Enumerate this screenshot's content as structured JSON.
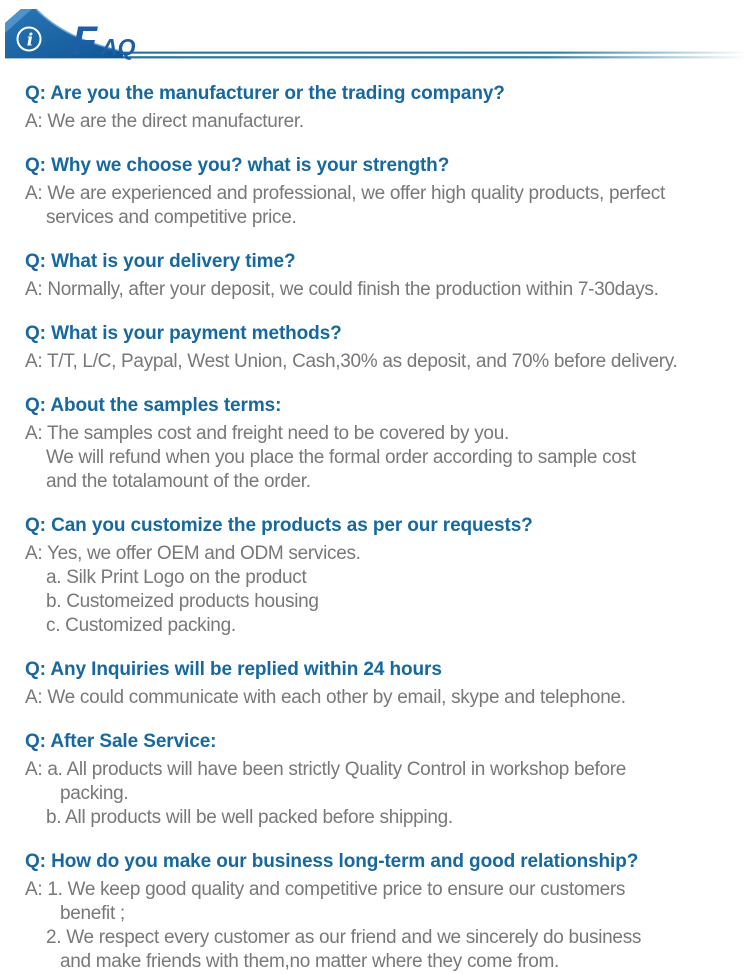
{
  "header": {
    "info_glyph": "i",
    "title_large": "F",
    "title_small": "AQ",
    "colors": {
      "ribbon_blue_top": "#2a76b6",
      "ribbon_blue_bottom": "#0f5694",
      "ribbon_accent": "#4e92c9",
      "rule_blue": "#296f95",
      "title_blue": "#1c5fa6"
    }
  },
  "colors": {
    "question_text": "#17689e",
    "answer_text": "#77787a"
  },
  "faq": [
    {
      "question": "Q: Are you the manufacturer or the trading company?",
      "answer_lines": [
        {
          "text": "A: We are the direct manufacturer.",
          "indent": 0
        }
      ]
    },
    {
      "question": "Q: Why we choose you? what is your strength?",
      "answer_lines": [
        {
          "text": "A: We are experienced and professional, we offer high quality products, perfect",
          "indent": 0
        },
        {
          "text": "services and competitive price.",
          "indent": 1
        }
      ]
    },
    {
      "question": "Q: What is your delivery time?",
      "answer_lines": [
        {
          "text": "A: Normally, after your deposit, we could finish the production within 7-30days.",
          "indent": 0
        }
      ]
    },
    {
      "question": "Q: What is your payment methods?",
      "answer_lines": [
        {
          "text": "A: T/T, L/C, Paypal, West Union, Cash,30% as deposit, and 70% before delivery.",
          "indent": 0
        }
      ]
    },
    {
      "question": "Q: About the samples terms:",
      "answer_lines": [
        {
          "text": "A: The samples cost and freight need to be covered by you.",
          "indent": 0
        },
        {
          "text": "We will refund when you place the formal order according to sample cost",
          "indent": 1
        },
        {
          "text": "and the totalamount of the order.",
          "indent": 1
        }
      ]
    },
    {
      "question": "Q: Can you customize the products as per our requests?",
      "answer_lines": [
        {
          "text": "A: Yes, we offer OEM and ODM services.",
          "indent": 0
        },
        {
          "text": "a. Silk Print Logo on the product",
          "indent": 1
        },
        {
          "text": "b. Customeized products housing",
          "indent": 1
        },
        {
          "text": "c. Customized packing.",
          "indent": 1
        }
      ]
    },
    {
      "question": "Q: Any Inquiries will be replied within 24 hours",
      "answer_lines": [
        {
          "text": "A: We could communicate with each other by email, skype and telephone.",
          "indent": 0
        }
      ]
    },
    {
      "question": "Q: After Sale Service:",
      "answer_lines": [
        {
          "text": "A: a. All products will have been strictly Quality Control in workshop before",
          "indent": 0
        },
        {
          "text": "packing.",
          "indent": 2
        },
        {
          "text": "b. All products will be well packed before shipping.",
          "indent": 1
        }
      ]
    },
    {
      "question": "Q: How do you make our business long-term and good relationship?",
      "answer_lines": [
        {
          "text": "A: 1. We keep good quality and competitive price to ensure our customers",
          "indent": 0
        },
        {
          "text": "benefit ;",
          "indent": 2
        },
        {
          "text": "2. We respect every customer as our friend and we sincerely do business",
          "indent": 1
        },
        {
          "text": "and make friends with them,no matter where they come from.",
          "indent": 2
        }
      ]
    }
  ]
}
